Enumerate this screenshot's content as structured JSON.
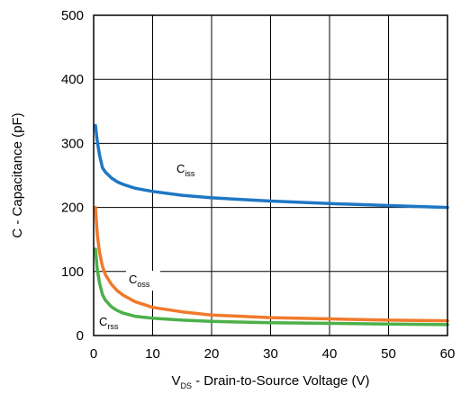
{
  "chart_data": {
    "type": "line",
    "xlabel": {
      "prefix": "V",
      "sub": "DS",
      "suffix": " - Drain-to-Source Voltage (V)"
    },
    "ylabel": "C - Capacitance (pF)",
    "xlim": [
      0,
      60
    ],
    "ylim": [
      0,
      500
    ],
    "xticks": [
      "0",
      "10",
      "20",
      "30",
      "40",
      "50",
      "60"
    ],
    "yticks": [
      "0",
      "100",
      "200",
      "300",
      "400",
      "500"
    ],
    "grid": true,
    "series": [
      {
        "name": "Ciss",
        "label": {
          "main": "C",
          "sub": "iss"
        },
        "color": "#1f77c4",
        "x": [
          0.3,
          0.6,
          1,
          1.5,
          2,
          3,
          4,
          5,
          7,
          10,
          15,
          20,
          30,
          40,
          50,
          60
        ],
        "y": [
          328,
          305,
          282,
          262,
          255,
          246,
          240,
          236,
          230,
          225,
          219,
          215,
          210,
          206,
          203,
          200
        ]
      },
      {
        "name": "Coss",
        "label": {
          "main": "C",
          "sub": "oss"
        },
        "color": "#f07a2b",
        "x": [
          0.3,
          0.6,
          1,
          1.5,
          2,
          3,
          4,
          5,
          7,
          10,
          15,
          20,
          30,
          40,
          50,
          60
        ],
        "y": [
          200,
          160,
          130,
          108,
          95,
          80,
          70,
          63,
          53,
          44,
          37,
          32,
          28,
          26,
          24,
          23
        ]
      },
      {
        "name": "Crss",
        "label": {
          "main": "C",
          "sub": "rss"
        },
        "color": "#4cb04a",
        "x": [
          0.3,
          0.6,
          1,
          1.5,
          2,
          3,
          4,
          5,
          7,
          10,
          15,
          20,
          30,
          40,
          50,
          60
        ],
        "y": [
          135,
          105,
          82,
          64,
          55,
          45,
          39,
          35,
          30,
          27,
          24,
          22,
          20,
          19,
          18,
          17
        ]
      }
    ]
  }
}
